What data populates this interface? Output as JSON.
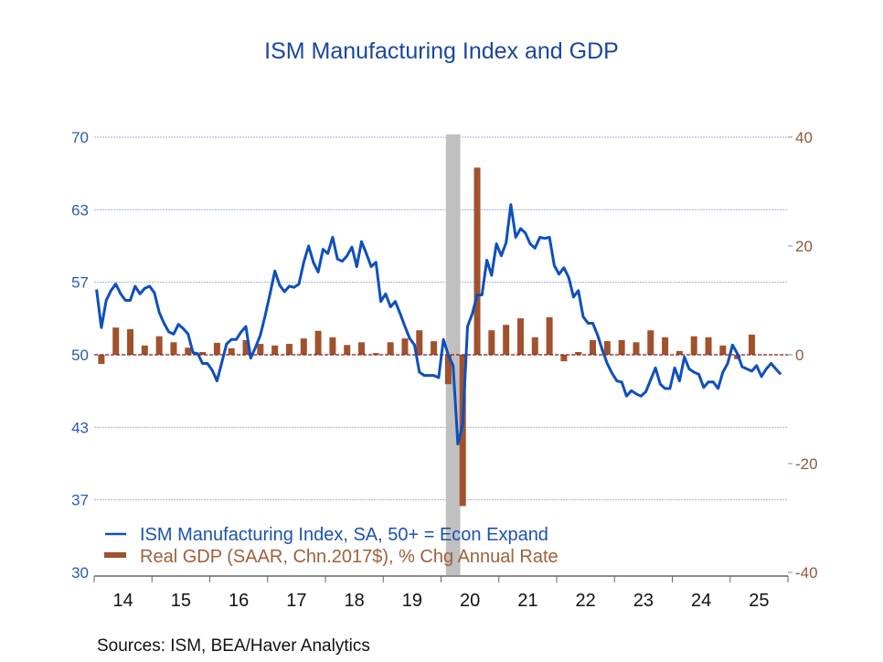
{
  "chart_data": {
    "type": "line+bar",
    "title": "ISM Manufacturing Index and GDP",
    "sources": "Sources:   ISM, BEA/Haver Analytics",
    "x_tick_labels": [
      "14",
      "15",
      "16",
      "17",
      "18",
      "19",
      "20",
      "21",
      "22",
      "23",
      "24",
      "25"
    ],
    "x_range": [
      "2014-01",
      "2025-12"
    ],
    "left_axis": {
      "range": [
        30,
        70
      ],
      "tick_labels": [
        "70",
        "63",
        "57",
        "50",
        "43",
        "37",
        "30"
      ],
      "color": "#2a5bb5"
    },
    "right_axis": {
      "range": [
        -40,
        40
      ],
      "tick_labels": [
        "40",
        "20",
        "0",
        "-20",
        "-40"
      ],
      "color": "#8b5a3c"
    },
    "grid": true,
    "legend_position": "bottom-left",
    "recession_shading": {
      "start": "2020-02",
      "end": "2020-04",
      "color": "#c0c0c0"
    },
    "series": [
      {
        "name": "ISM Manufacturing Index, SA, 50+ = Econ Expand",
        "type": "line",
        "axis": "left",
        "frequency": "monthly",
        "color": "#0d4fbf",
        "values_by_year": {
          "2014": [
            56.0,
            52.5,
            55.0,
            55.9,
            56.5,
            55.6,
            55.0,
            55.0,
            56.3,
            55.6,
            56.1,
            56.3
          ],
          "2015": [
            55.7,
            53.9,
            52.9,
            52.1,
            51.9,
            52.8,
            52.4,
            51.9,
            50.2,
            50.1,
            49.2,
            49.2
          ],
          "2016": [
            48.6,
            47.6,
            49.3,
            51.0,
            51.4,
            51.4,
            52.1,
            52.6,
            49.7,
            50.7,
            51.8,
            53.6
          ],
          "2017": [
            55.6,
            57.7,
            56.4,
            55.8,
            56.3,
            56.2,
            56.5,
            58.5,
            60.0,
            58.5,
            57.6,
            59.7
          ],
          "2018": [
            59.3,
            60.8,
            58.8,
            58.6,
            59.1,
            59.9,
            58.1,
            60.4,
            59.3,
            58.1,
            58.5,
            54.9
          ],
          "2019": [
            55.6,
            54.4,
            54.9,
            53.8,
            52.6,
            51.5,
            50.9,
            48.4,
            48.1,
            48.1,
            48.1,
            47.9
          ],
          "2020": [
            51.4,
            50.0,
            49.0,
            41.8,
            43.6,
            52.6,
            53.8,
            55.5,
            55.5,
            58.7,
            57.3,
            60.2
          ],
          "2021": [
            59.1,
            60.3,
            63.8,
            60.8,
            61.6,
            61.2,
            60.2,
            59.8,
            60.8,
            60.7,
            60.8,
            58.2
          ],
          "2022": [
            57.4,
            58.0,
            57.1,
            55.3,
            55.9,
            53.5,
            52.9,
            52.9,
            51.8,
            50.4,
            49.2,
            48.3
          ],
          "2023": [
            47.6,
            47.5,
            46.2,
            46.7,
            46.4,
            46.2,
            46.6,
            47.7,
            48.8,
            47.3,
            46.9,
            46.9
          ],
          "2024": [
            48.8,
            47.6,
            49.8,
            48.7,
            48.4,
            48.2,
            47.0,
            47.5,
            47.5,
            46.9,
            48.4,
            49.2
          ],
          "2025": [
            50.9,
            50.1,
            48.9,
            48.7,
            48.5,
            49.0,
            48.0,
            48.7,
            49.2,
            48.7,
            48.2
          ]
        }
      },
      {
        "name": "Real GDP (SAAR, Chn.2017$), % Chg Annual Rate",
        "type": "bar",
        "axis": "right",
        "frequency": "quarterly",
        "color": "#a0522d",
        "values_by_year": {
          "2014": [
            -1.7,
            5.0,
            4.7,
            1.7
          ],
          "2015": [
            3.4,
            2.3,
            1.3,
            0.5
          ],
          "2016": [
            2.2,
            1.2,
            2.7,
            2.0
          ],
          "2017": [
            1.7,
            2.0,
            3.0,
            4.4
          ],
          "2018": [
            3.2,
            1.8,
            2.3,
            0.3
          ],
          "2019": [
            2.3,
            3.0,
            4.5,
            2.5
          ],
          "2020": [
            -5.4,
            -27.8,
            34.4,
            4.5
          ],
          "2021": [
            5.5,
            6.7,
            3.2,
            6.9
          ],
          "2022": [
            -1.2,
            0.5,
            2.7,
            2.5
          ],
          "2023": [
            2.7,
            2.3,
            4.5,
            3.2
          ],
          "2024": [
            0.7,
            3.4,
            3.2,
            1.7
          ],
          "2025": [
            -0.8,
            3.7
          ]
        }
      }
    ]
  }
}
